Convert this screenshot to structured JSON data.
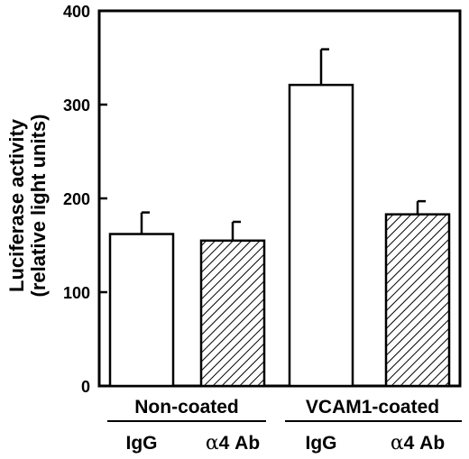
{
  "chart_data": {
    "type": "bar",
    "ylabel_line1": "Luciferase activity",
    "ylabel_line2": "(relative light units)",
    "ylim": [
      0,
      400
    ],
    "yticks": [
      0,
      100,
      200,
      300,
      400
    ],
    "groups": [
      {
        "name": "Non-coated",
        "bars": [
          0,
          1
        ]
      },
      {
        "name": "VCAM1-coated",
        "bars": [
          2,
          3
        ]
      }
    ],
    "bars": [
      {
        "label_prefix": "",
        "label_suffix": "IgG",
        "value": 162,
        "error": 23,
        "pattern": "open"
      },
      {
        "label_prefix": "α",
        "label_suffix": "4 Ab",
        "value": 155,
        "error": 20,
        "pattern": "hatched"
      },
      {
        "label_prefix": "",
        "label_suffix": "IgG",
        "value": 321,
        "error": 38,
        "pattern": "open"
      },
      {
        "label_prefix": "α",
        "label_suffix": "4 Ab",
        "value": 183,
        "error": 14,
        "pattern": "hatched"
      }
    ],
    "grid": false,
    "colors": {
      "bar_fill": "#ffffff",
      "stroke": "#000000",
      "hatch": "#000000"
    }
  }
}
